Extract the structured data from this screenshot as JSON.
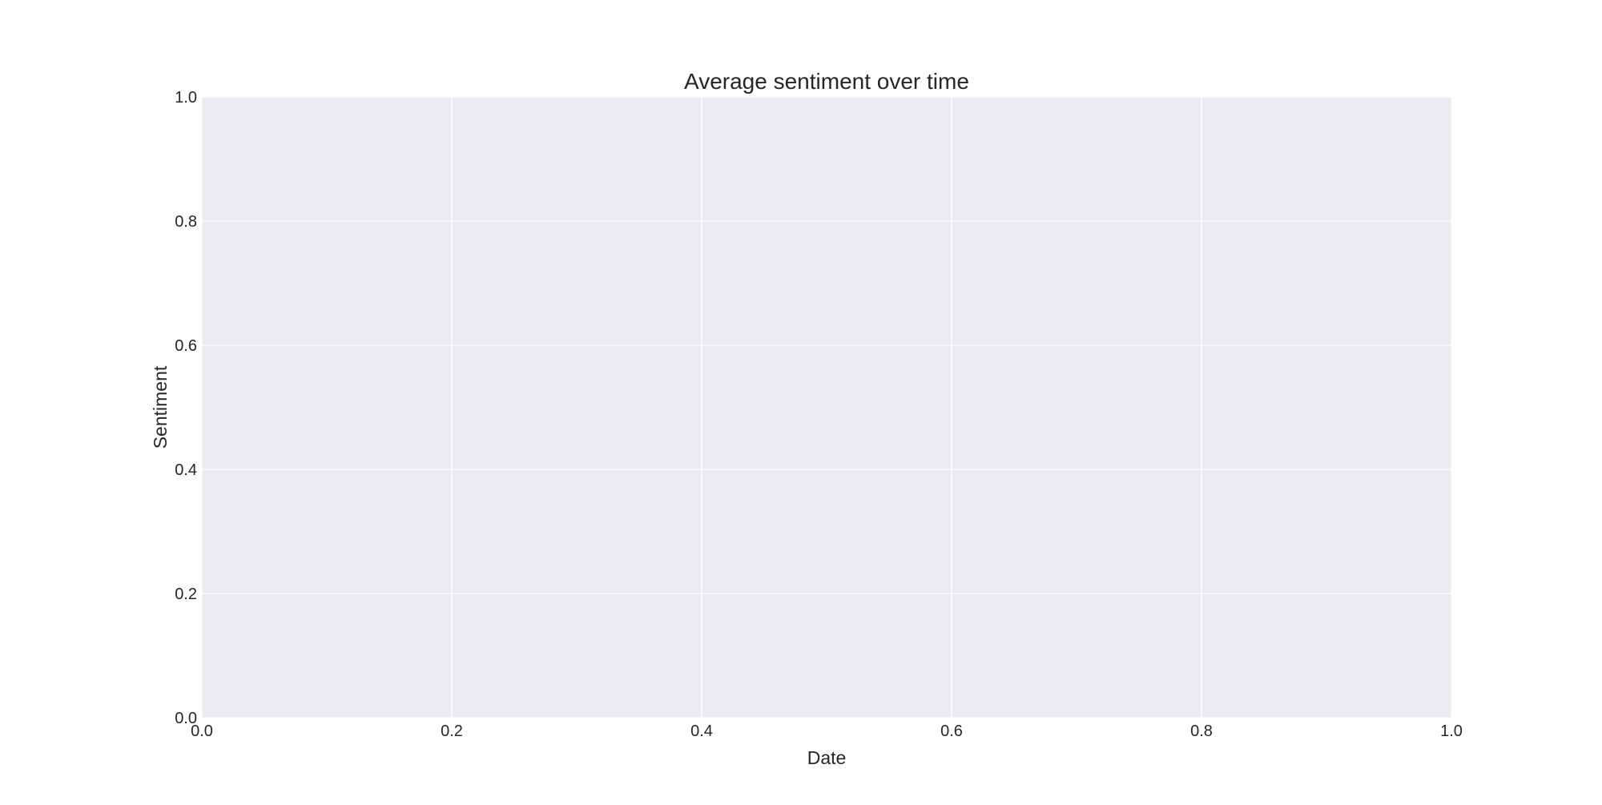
{
  "chart_data": {
    "type": "line",
    "title": "Average sentiment over time",
    "xlabel": "Date",
    "ylabel": "Sentiment",
    "xlim": [
      0.0,
      1.0
    ],
    "ylim": [
      0.0,
      1.0
    ],
    "x_ticks": [
      "0.0",
      "0.2",
      "0.4",
      "0.6",
      "0.8",
      "1.0"
    ],
    "y_ticks": [
      "0.0",
      "0.2",
      "0.4",
      "0.6",
      "0.8",
      "1.0"
    ],
    "series": [],
    "grid": true,
    "legend": "none",
    "colors": {
      "plot_background": "#eaeaf2",
      "grid": "#ffffff",
      "text": "#262626"
    }
  }
}
